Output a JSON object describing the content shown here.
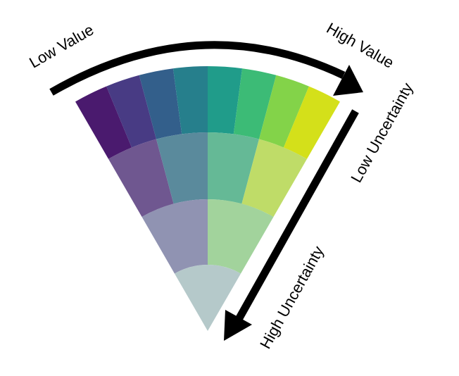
{
  "labels": {
    "low_value": "Low Value",
    "high_value": "High Value",
    "low_uncertainty": "Low Uncertainty",
    "high_uncertainty": "High Uncertainty"
  },
  "legend": {
    "type": "value-suppressing uncertainty palette",
    "value_direction": "left to right",
    "uncertainty_direction": "outer to inner",
    "rows": [
      {
        "level": 1,
        "colors": [
          "#4a1a6e",
          "#483b84",
          "#335f8b",
          "#267f8c",
          "#209c8a",
          "#3cbb76",
          "#83d349",
          "#d4e01a"
        ]
      },
      {
        "level": 2,
        "colors": [
          "#6f5790",
          "#5a8a9c",
          "#65b996",
          "#bfdc68"
        ]
      },
      {
        "level": 3,
        "colors": [
          "#9093b2",
          "#a2d39c"
        ]
      },
      {
        "level": 4,
        "colors": [
          "#b5c9ca"
        ]
      }
    ],
    "arrow_color": "#000000"
  }
}
